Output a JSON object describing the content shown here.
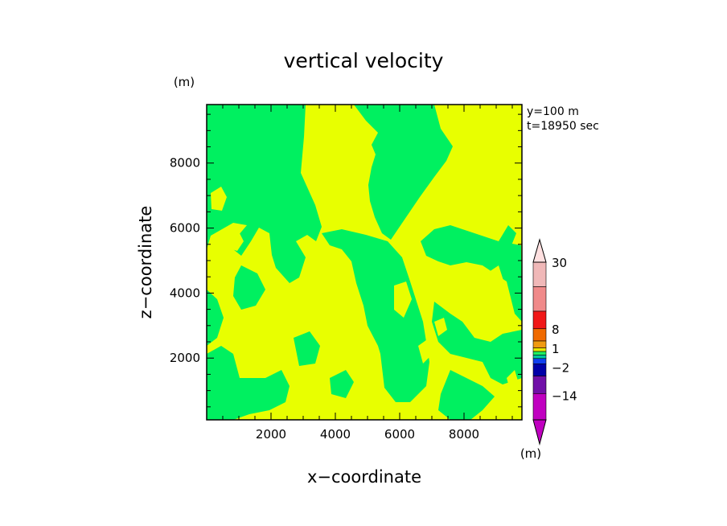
{
  "chart_data": {
    "type": "heatmap",
    "title": "vertical velocity",
    "xlabel": "x−coordinate",
    "ylabel": "z−coordinate",
    "x_unit": "(m)",
    "z_unit": "(m)",
    "xlim": [
      0,
      9800
    ],
    "zlim": [
      100,
      9800
    ],
    "x_ticks": [
      2000,
      4000,
      6000,
      8000
    ],
    "z_ticks": [
      2000,
      4000,
      6000,
      8000
    ],
    "x_tick_labels": [
      "2000",
      "4000",
      "6000",
      "8000"
    ],
    "z_tick_labels": [
      "2000",
      "4000",
      "6000",
      "8000"
    ],
    "info": [
      "y=100  m",
      "t=18950 sec"
    ],
    "colorbar": {
      "unit": "(m)",
      "labels": [
        {
          "value": 30,
          "text": "30"
        },
        {
          "value": 8,
          "text": "8"
        },
        {
          "value": 1,
          "text": "1"
        },
        {
          "value": -2,
          "text": "−2"
        },
        {
          "value": -14,
          "text": "−14"
        }
      ],
      "segments": [
        {
          "level": 30,
          "color": "#f0b8b8"
        },
        {
          "level": 20,
          "color": "#f08a8a"
        },
        {
          "level": 12,
          "color": "#f01818"
        },
        {
          "level": 8,
          "color": "#f06a00"
        },
        {
          "level": 4,
          "color": "#f09a10"
        },
        {
          "level": 2,
          "color": "#e8e800"
        },
        {
          "level": 1,
          "color": "#20f060"
        },
        {
          "level": 0,
          "color": "#00c8a0"
        },
        {
          "level": -1,
          "color": "#1040f0"
        },
        {
          "level": -2,
          "color": "#0000a8"
        },
        {
          "level": -8,
          "color": "#7010a8"
        },
        {
          "level": -14,
          "color": "#c000c0"
        }
      ],
      "top_arrow_color": "#ffe0e0",
      "bottom_arrow_color": "#c000c0"
    },
    "field_colors": {
      "positive": "#e8ff00",
      "negative": "#00f060"
    }
  }
}
